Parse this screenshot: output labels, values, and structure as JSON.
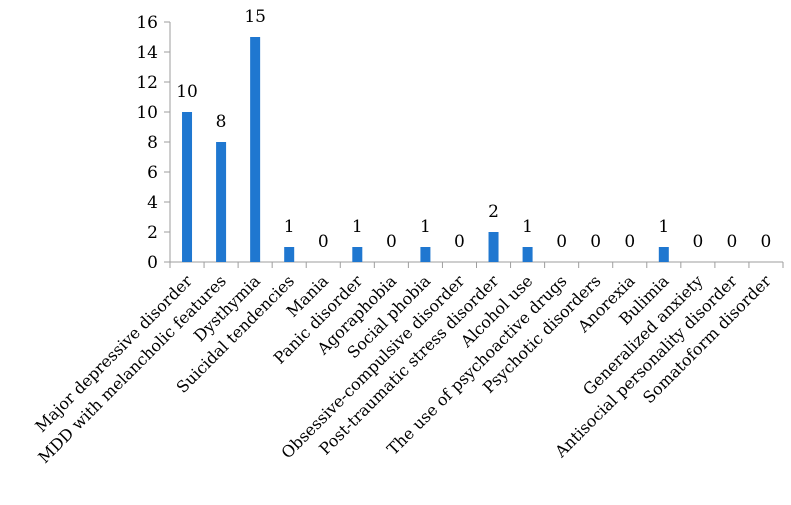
{
  "chart_data": {
    "type": "bar",
    "title": "",
    "xlabel": "",
    "ylabel": "",
    "ylim": [
      0,
      16
    ],
    "yticks": [
      0,
      2,
      4,
      6,
      8,
      10,
      12,
      14,
      16
    ],
    "grid": false,
    "legend": "none",
    "bar_color": "#1f77d0",
    "categories": [
      "Major depressive disorder",
      "MDD with melancholic features",
      "Dysthymia",
      "Suicidal tendencies",
      "Mania",
      "Panic disorder",
      "Agoraphobia",
      "Social phobia",
      "Obsessive-compulsive disorder",
      "Post-traumatic stress disorder",
      "Alcohol use",
      "The use of psychoactive drugs",
      "Psychotic disorders",
      "Anorexia",
      "Bulimia",
      "Generalized anxiety",
      "Antisocial personality disorder",
      "Somatoform disorder"
    ],
    "values": [
      10,
      8,
      15,
      1,
      0,
      1,
      0,
      1,
      0,
      2,
      1,
      0,
      0,
      0,
      1,
      0,
      0,
      0
    ]
  }
}
